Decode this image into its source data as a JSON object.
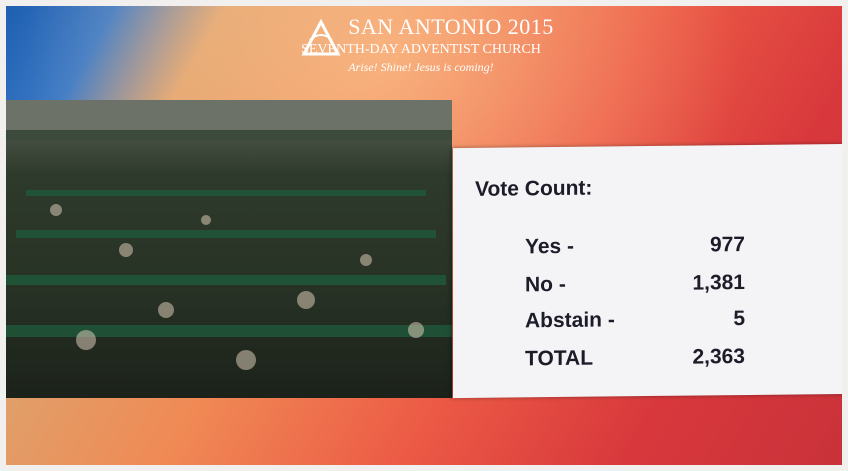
{
  "header": {
    "logo_text": "SAN ANTONIO 2015",
    "church": "SEVENTH-DAY ADVENTIST CHURCH",
    "tagline": "Arise! Shine! Jesus is coming!"
  },
  "vote_count": {
    "title": "Vote Count:",
    "rows": [
      {
        "label": "Yes -",
        "value": "977"
      },
      {
        "label": "No -",
        "value": "1,381"
      },
      {
        "label": "Abstain -",
        "value": "5"
      },
      {
        "label": "TOTAL",
        "value": "2,363"
      }
    ]
  }
}
